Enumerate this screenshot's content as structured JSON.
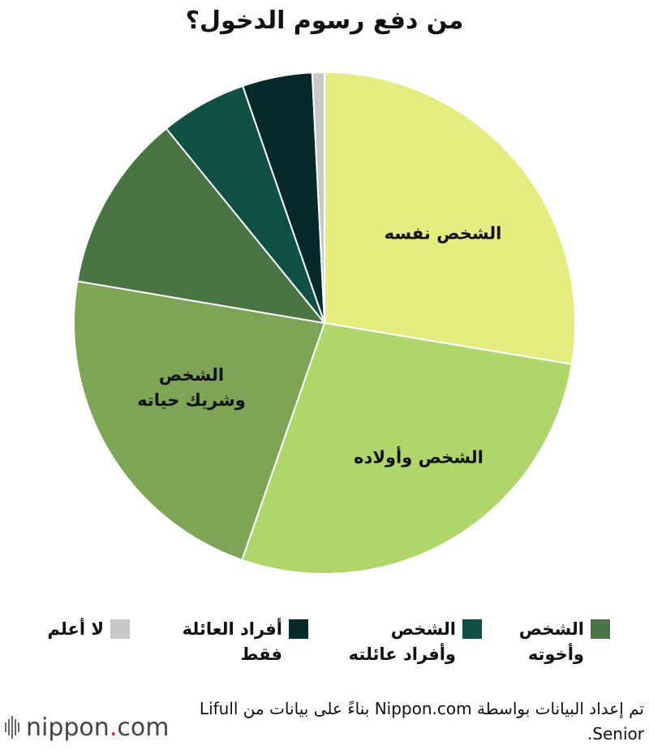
{
  "title": "من دفع رسوم الدخول؟",
  "chart_data": {
    "type": "pie",
    "title": "من دفع رسوم الدخول؟",
    "start": "12 o'clock, clockwise",
    "slices": [
      {
        "key": "self",
        "label": "الشخص نفسه",
        "legend": "",
        "value": 28.2,
        "color": "#e4ec80"
      },
      {
        "key": "children",
        "label": "الشخص وأولاده",
        "legend": "",
        "value": 28.3,
        "color": "#aed66a"
      },
      {
        "key": "spouse",
        "label": "الشخص\nوشريك حياته",
        "legend": "",
        "value": 22.8,
        "color": "#7ea456"
      },
      {
        "key": "siblings",
        "label": "",
        "legend": "الشخص\nوأخوته",
        "value": 11.7,
        "color": "#4a7443"
      },
      {
        "key": "family",
        "label": "",
        "legend": "الشخص\nوأفراد عائلته",
        "value": 5.7,
        "color": "#0f5042"
      },
      {
        "key": "family_only",
        "label": "",
        "legend": "أفراد العائلة\nفقط",
        "value": 4.6,
        "color": "#062a2a"
      },
      {
        "key": "unknown",
        "label": "",
        "legend": "لا أعلم",
        "value": 0.8,
        "color": "#c8c8c8"
      }
    ]
  },
  "source_note": "تم إعداد البيانات بواسطة Nippon.com بناءً على بيانات من Lifull Senior.",
  "logo": {
    "text": "nippon",
    "dot": ".",
    "suffix": "com"
  }
}
